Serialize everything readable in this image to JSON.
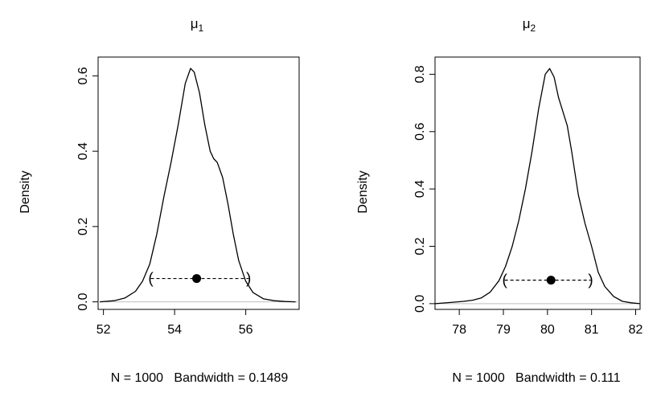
{
  "chart_data": [
    {
      "type": "line",
      "title": "μ",
      "title_subscript": "1",
      "ylabel": "Density",
      "xlabel": "N = 1000   Bandwidth = 0.1489",
      "xlim": [
        51.85,
        57.5
      ],
      "ylim": [
        -0.02,
        0.65
      ],
      "xticks": [
        52,
        54,
        56
      ],
      "yticks": [
        0.0,
        0.2,
        0.4,
        0.6
      ],
      "grid": false,
      "series": [
        {
          "x": [
            51.9,
            52.3,
            52.6,
            52.9,
            53.1,
            53.3,
            53.5,
            53.7,
            53.9,
            54.1,
            54.3,
            54.45,
            54.55,
            54.7,
            54.85,
            55.0,
            55.1,
            55.2,
            55.35,
            55.5,
            55.65,
            55.8,
            56.0,
            56.2,
            56.5,
            56.8,
            57.1,
            57.4
          ],
          "y": [
            0.0,
            0.003,
            0.01,
            0.028,
            0.055,
            0.1,
            0.18,
            0.28,
            0.37,
            0.47,
            0.58,
            0.62,
            0.61,
            0.555,
            0.47,
            0.4,
            0.38,
            0.37,
            0.33,
            0.26,
            0.18,
            0.11,
            0.055,
            0.025,
            0.008,
            0.003,
            0.001,
            0.0
          ]
        }
      ],
      "hpd_interval": [
        53.33,
        56.08
      ],
      "hpd_y": 0.062,
      "mean": 54.62
    },
    {
      "type": "line",
      "title": "μ",
      "title_subscript": "2",
      "ylabel": "Density",
      "xlabel": "N = 1000   Bandwidth = 0.111",
      "xlim": [
        77.45,
        82.1
      ],
      "ylim": [
        -0.02,
        0.86
      ],
      "xticks": [
        78,
        79,
        80,
        81,
        82
      ],
      "yticks": [
        0.0,
        0.2,
        0.4,
        0.6,
        0.8
      ],
      "grid": false,
      "series": [
        {
          "x": [
            77.45,
            77.8,
            78.1,
            78.3,
            78.5,
            78.7,
            78.9,
            79.05,
            79.2,
            79.35,
            79.5,
            79.65,
            79.8,
            79.95,
            80.05,
            80.15,
            80.25,
            80.35,
            80.45,
            80.55,
            80.7,
            80.85,
            81.0,
            81.15,
            81.3,
            81.5,
            81.7,
            81.9,
            82.1
          ],
          "y": [
            0.0,
            0.004,
            0.008,
            0.012,
            0.02,
            0.04,
            0.08,
            0.13,
            0.2,
            0.29,
            0.4,
            0.53,
            0.68,
            0.8,
            0.82,
            0.79,
            0.72,
            0.67,
            0.62,
            0.53,
            0.38,
            0.28,
            0.2,
            0.11,
            0.06,
            0.025,
            0.008,
            0.003,
            0.0
          ]
        }
      ],
      "hpd_interval": [
        79.03,
        80.98
      ],
      "hpd_y": 0.082,
      "mean": 80.08
    }
  ]
}
